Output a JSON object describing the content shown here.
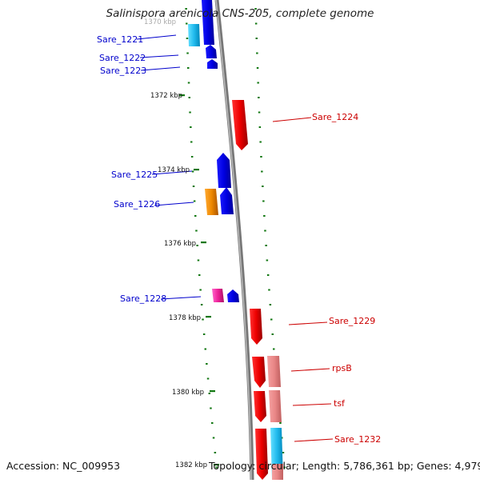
{
  "title": "Salinispora arenicola CNS-205, complete genome",
  "accession": "Accession: NC_009953",
  "summary": "Topology: circular; Length: 5,786,361 bp; Genes: 4,979",
  "axis_labels": [
    "1370 kbp",
    "1372 kbp",
    "1374 kbp",
    "1376 kbp",
    "1378 kbp",
    "1380 kbp",
    "1382 kbp"
  ],
  "colors": {
    "forward_gene": "#0000ee",
    "reverse_gene": "#ee0000",
    "rna": "#33ccee",
    "pseudo": "#ff8800",
    "hypothetical": "#ff33aa",
    "light_red": "#ee8888",
    "tick": "#117711",
    "backbone": "#888888"
  },
  "gene_labels": {
    "left": [
      "Sare_1221",
      "Sare_1222",
      "Sare_1223",
      "Sare_1225",
      "Sare_1226",
      "Sare_1228"
    ],
    "right": [
      "Sare_1224",
      "Sare_1229",
      "rpsB",
      "tsf",
      "Sare_1232"
    ]
  }
}
